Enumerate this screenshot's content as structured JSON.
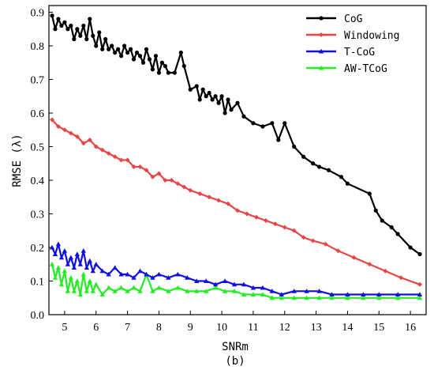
{
  "chart_data": {
    "type": "line",
    "title": "",
    "xlabel": "SNRm",
    "ylabel": "RMSE (λ)",
    "caption": "(b)",
    "xlim": [
      4.5,
      16.5
    ],
    "ylim": [
      0.0,
      0.92
    ],
    "xticks": [
      5,
      6,
      7,
      8,
      9,
      10,
      11,
      12,
      13,
      14,
      15,
      16
    ],
    "yticks": [
      0.0,
      0.1,
      0.2,
      0.3,
      0.4,
      0.5,
      0.6,
      0.7,
      0.8,
      0.9
    ],
    "grid": false,
    "legend_position": "top-right",
    "series": [
      {
        "name": "CoG",
        "color": "#000000",
        "marker": "circle",
        "x": [
          4.6,
          4.7,
          4.8,
          4.9,
          5.0,
          5.1,
          5.2,
          5.3,
          5.4,
          5.5,
          5.6,
          5.7,
          5.8,
          5.9,
          6.0,
          6.1,
          6.2,
          6.3,
          6.4,
          6.5,
          6.6,
          6.7,
          6.8,
          6.9,
          7.0,
          7.1,
          7.2,
          7.3,
          7.4,
          7.5,
          7.6,
          7.7,
          7.8,
          7.9,
          8.0,
          8.1,
          8.2,
          8.3,
          8.5,
          8.7,
          8.8,
          9.0,
          9.2,
          9.3,
          9.4,
          9.5,
          9.6,
          9.7,
          9.8,
          9.9,
          10.0,
          10.1,
          10.2,
          10.3,
          10.5,
          10.7,
          11.0,
          11.3,
          11.6,
          11.8,
          12.0,
          12.3,
          12.6,
          12.9,
          13.1,
          13.4,
          13.8,
          14.0,
          14.7,
          14.9,
          15.1,
          15.4,
          15.6,
          16.0,
          16.3
        ],
        "values": [
          0.89,
          0.85,
          0.88,
          0.86,
          0.87,
          0.85,
          0.86,
          0.82,
          0.85,
          0.83,
          0.86,
          0.82,
          0.88,
          0.83,
          0.8,
          0.84,
          0.79,
          0.82,
          0.79,
          0.8,
          0.78,
          0.79,
          0.77,
          0.8,
          0.78,
          0.79,
          0.76,
          0.78,
          0.77,
          0.75,
          0.79,
          0.76,
          0.73,
          0.77,
          0.72,
          0.75,
          0.74,
          0.72,
          0.72,
          0.78,
          0.74,
          0.67,
          0.68,
          0.64,
          0.67,
          0.65,
          0.66,
          0.64,
          0.65,
          0.63,
          0.65,
          0.6,
          0.64,
          0.61,
          0.63,
          0.59,
          0.57,
          0.56,
          0.57,
          0.52,
          0.57,
          0.5,
          0.47,
          0.45,
          0.44,
          0.43,
          0.41,
          0.39,
          0.36,
          0.31,
          0.28,
          0.26,
          0.24,
          0.2,
          0.18
        ]
      },
      {
        "name": "Windowing",
        "color": "#e84545",
        "marker": "diamond",
        "x": [
          4.6,
          4.8,
          5.0,
          5.2,
          5.4,
          5.6,
          5.8,
          6.0,
          6.2,
          6.4,
          6.6,
          6.8,
          7.0,
          7.2,
          7.4,
          7.6,
          7.8,
          8.0,
          8.2,
          8.4,
          8.6,
          8.8,
          9.0,
          9.3,
          9.6,
          9.9,
          10.2,
          10.5,
          10.8,
          11.1,
          11.4,
          11.7,
          12.0,
          12.3,
          12.6,
          12.9,
          13.3,
          13.7,
          14.2,
          14.7,
          15.2,
          15.7,
          16.3
        ],
        "values": [
          0.58,
          0.56,
          0.55,
          0.54,
          0.53,
          0.51,
          0.52,
          0.5,
          0.49,
          0.48,
          0.47,
          0.46,
          0.46,
          0.44,
          0.44,
          0.43,
          0.41,
          0.42,
          0.4,
          0.4,
          0.39,
          0.38,
          0.37,
          0.36,
          0.35,
          0.34,
          0.33,
          0.31,
          0.3,
          0.29,
          0.28,
          0.27,
          0.26,
          0.25,
          0.23,
          0.22,
          0.21,
          0.19,
          0.17,
          0.15,
          0.13,
          0.11,
          0.09
        ]
      },
      {
        "name": "T-CoG",
        "color": "#1010e0",
        "marker": "triangle",
        "x": [
          4.6,
          4.7,
          4.8,
          4.9,
          5.0,
          5.1,
          5.2,
          5.3,
          5.4,
          5.5,
          5.6,
          5.7,
          5.8,
          5.9,
          6.0,
          6.2,
          6.4,
          6.6,
          6.8,
          7.0,
          7.2,
          7.4,
          7.6,
          7.8,
          8.0,
          8.3,
          8.6,
          8.9,
          9.2,
          9.5,
          9.8,
          10.1,
          10.4,
          10.7,
          11.0,
          11.3,
          11.6,
          11.9,
          12.3,
          12.7,
          13.1,
          13.5,
          14.0,
          14.5,
          15.0,
          15.6,
          16.3
        ],
        "values": [
          0.2,
          0.18,
          0.21,
          0.17,
          0.19,
          0.15,
          0.17,
          0.14,
          0.18,
          0.15,
          0.19,
          0.14,
          0.16,
          0.13,
          0.15,
          0.13,
          0.12,
          0.14,
          0.12,
          0.12,
          0.11,
          0.13,
          0.12,
          0.11,
          0.12,
          0.11,
          0.12,
          0.11,
          0.1,
          0.1,
          0.09,
          0.1,
          0.09,
          0.09,
          0.08,
          0.08,
          0.07,
          0.06,
          0.07,
          0.07,
          0.07,
          0.06,
          0.06,
          0.06,
          0.06,
          0.06,
          0.06
        ]
      },
      {
        "name": "AW-TCoG",
        "color": "#22ee22",
        "marker": "triangle",
        "x": [
          4.6,
          4.7,
          4.8,
          4.9,
          5.0,
          5.1,
          5.2,
          5.3,
          5.4,
          5.5,
          5.6,
          5.7,
          5.8,
          5.9,
          6.0,
          6.2,
          6.4,
          6.6,
          6.8,
          7.0,
          7.2,
          7.4,
          7.6,
          7.8,
          8.0,
          8.3,
          8.6,
          8.9,
          9.2,
          9.5,
          9.8,
          10.1,
          10.4,
          10.7,
          11.0,
          11.3,
          11.6,
          11.9,
          12.3,
          12.7,
          13.1,
          13.5,
          14.0,
          14.5,
          15.0,
          15.6,
          16.3
        ],
        "values": [
          0.15,
          0.11,
          0.14,
          0.09,
          0.13,
          0.07,
          0.11,
          0.07,
          0.1,
          0.06,
          0.12,
          0.07,
          0.1,
          0.07,
          0.09,
          0.06,
          0.08,
          0.07,
          0.08,
          0.07,
          0.08,
          0.07,
          0.12,
          0.07,
          0.08,
          0.07,
          0.08,
          0.07,
          0.07,
          0.07,
          0.08,
          0.07,
          0.07,
          0.06,
          0.06,
          0.06,
          0.05,
          0.05,
          0.05,
          0.05,
          0.05,
          0.05,
          0.05,
          0.05,
          0.05,
          0.05,
          0.05
        ]
      }
    ]
  }
}
